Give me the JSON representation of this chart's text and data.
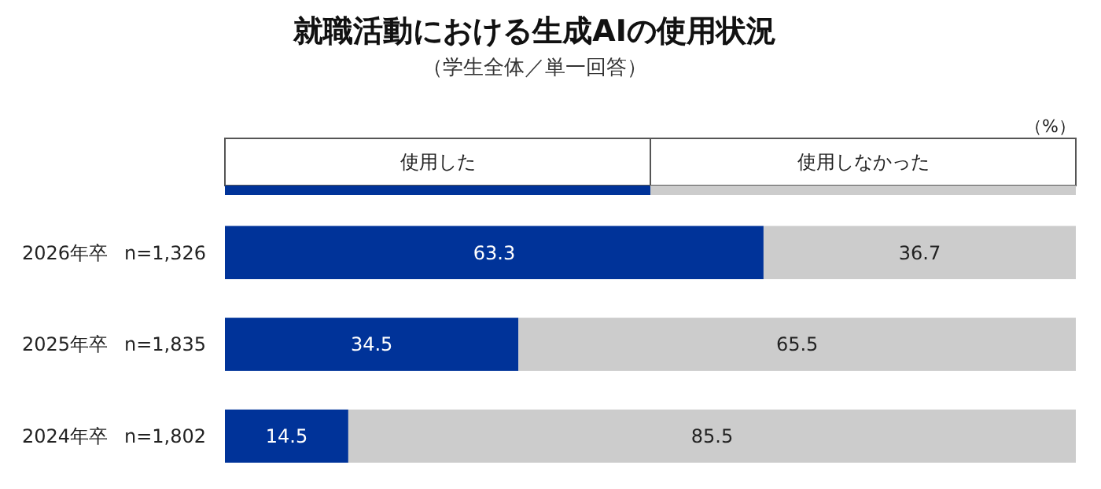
{
  "chart_data": {
    "type": "bar",
    "orientation": "horizontal",
    "stacked": true,
    "title": "就職活動における生成AIの使用状況",
    "subtitle": "（学生全体／単一回答）",
    "categories": [
      "2026年卒",
      "2025年卒",
      "2024年卒"
    ],
    "series": [
      {
        "name": "使用した",
        "color": "#003399",
        "values": [
          63.3,
          34.5,
          14.5
        ]
      },
      {
        "name": "使用しなかった",
        "color": "#cccccc",
        "values": [
          36.7,
          65.5,
          85.5
        ]
      }
    ],
    "data_labels": true,
    "legend": "top",
    "annotations": [
      "n=1,326",
      "n=1,835",
      "n=1,802",
      "（%）"
    ]
  }
}
